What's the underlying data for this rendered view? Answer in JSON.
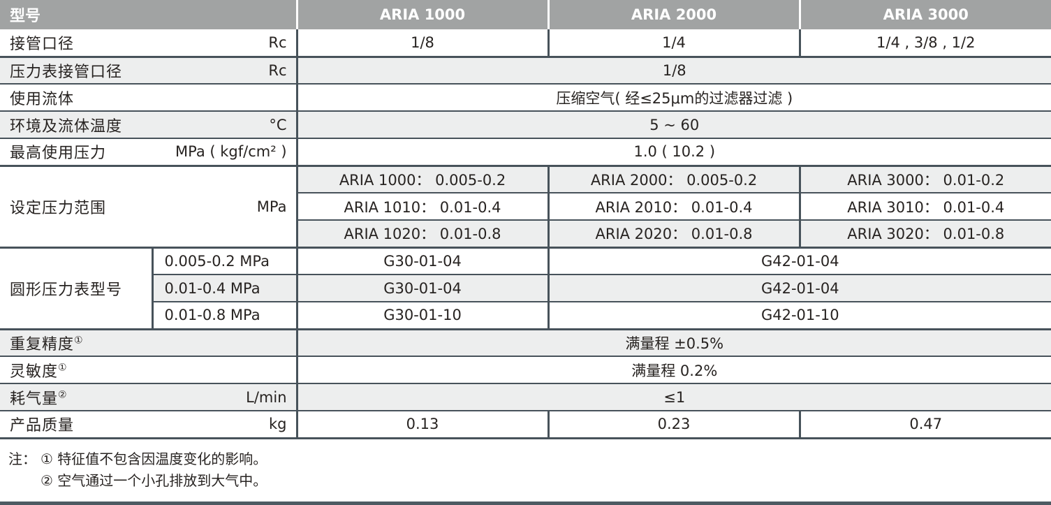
{
  "colors": {
    "header_bg": "#a1a3a3",
    "header_text": "#ffffff",
    "zebra_row_bg": "#edeeee",
    "border": "#47525a",
    "bottom_rule": "#4d5a62"
  },
  "header": {
    "model_label": "型号",
    "columns": [
      "ARIA 1000",
      "ARIA 2000",
      "ARIA 3000"
    ]
  },
  "rows": {
    "port_size": {
      "label": "接管口径",
      "unit": "Rc",
      "values": [
        "1/8",
        "1/4",
        "1/4 , 3/8 , 1/2"
      ]
    },
    "gauge_port": {
      "label": "压力表接管口径",
      "unit": "Rc",
      "value": "1/8"
    },
    "fluid": {
      "label": "使用流体",
      "value": "压缩空气( 经≤25μm的过滤器过滤 )"
    },
    "temperature": {
      "label": "环境及流体温度",
      "unit": "°C",
      "value": "5 ~ 60"
    },
    "max_pressure": {
      "label": "最高使用压力",
      "unit": "MPa ( kgf/cm² )",
      "value": "1.0 ( 10.2 )"
    },
    "set_pressure": {
      "label": "设定压力范围",
      "unit": "MPa",
      "matrix": [
        [
          "ARIA 1000： 0.005-0.2",
          "ARIA 2000： 0.005-0.2",
          "ARIA 3000： 0.01-0.2"
        ],
        [
          "ARIA 1010： 0.01-0.4",
          "ARIA 2010： 0.01-0.4",
          "ARIA 3010： 0.01-0.4"
        ],
        [
          "ARIA 1020： 0.01-0.8",
          "ARIA 2020： 0.01-0.8",
          "ARIA 3020： 0.01-0.8"
        ]
      ]
    },
    "gauge_model": {
      "label": "圆形压力表型号",
      "subrows": [
        {
          "range": "0.005-0.2 MPa",
          "aria1000": "G30-01-04",
          "aria2000_3000": "G42-01-04"
        },
        {
          "range": "0.01-0.4  MPa",
          "aria1000": "G30-01-04",
          "aria2000_3000": "G42-01-04"
        },
        {
          "range": "0.01-0.8  MPa",
          "aria1000": "G30-01-10",
          "aria2000_3000": "G42-01-10"
        }
      ]
    },
    "repeatability": {
      "label": "重复精度",
      "sup": "①",
      "value": "满量程 ±0.5%"
    },
    "sensitivity": {
      "label": "灵敏度",
      "sup": "①",
      "value": "满量程 0.2%"
    },
    "air_consumption": {
      "label": "耗气量",
      "sup": "②",
      "unit": "L/min",
      "value": "≤1"
    },
    "weight": {
      "label": "产品质量",
      "unit": "kg",
      "values": [
        "0.13",
        "0.23",
        "0.47"
      ]
    }
  },
  "notes": {
    "prefix": "注：",
    "items": [
      "① 特征值不包含因温度变化的影响。",
      "② 空气通过一个小孔排放到大气中。"
    ]
  }
}
